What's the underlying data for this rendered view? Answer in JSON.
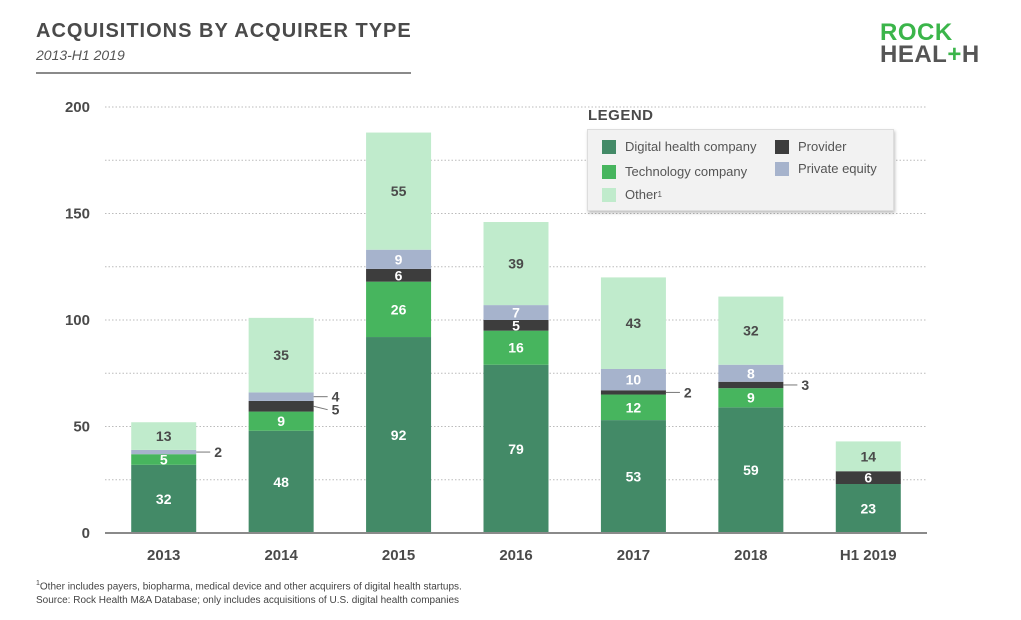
{
  "header": {
    "title": "ACQUISITIONS BY ACQUIRER TYPE",
    "subtitle": "2013-H1 2019"
  },
  "logo": {
    "line1": "ROCK",
    "line2_pre": "HEAL",
    "line2_plus": "+",
    "line2_post": "H"
  },
  "legend": {
    "title": "LEGEND",
    "items": [
      {
        "label": "Digital health company",
        "sup": "",
        "color": "#438a67"
      },
      {
        "label": "Technology company",
        "sup": "",
        "color": "#47b55e"
      },
      {
        "label": "Other",
        "sup": "1",
        "color": "#c0ebcc"
      },
      {
        "label": "Provider",
        "sup": "",
        "color": "#3d3d3d"
      },
      {
        "label": "Private equity",
        "sup": "",
        "color": "#a6b3cc"
      }
    ]
  },
  "footnote": {
    "line1_sup": "1",
    "line1": "Other includes payers, biopharma, medical device and other acquirers of digital health startups.",
    "line2": "Source: Rock Health M&A Database; only includes acquisitions of U.S. digital health companies"
  },
  "chart_data": {
    "type": "bar",
    "stacked": true,
    "title": "ACQUISITIONS BY ACQUIRER TYPE",
    "subtitle": "2013-H1 2019",
    "xlabel": "",
    "ylabel": "",
    "ylim": [
      0,
      200
    ],
    "yticks": [
      0,
      50,
      100,
      150,
      200
    ],
    "grid": true,
    "legend_position": "top-right",
    "categories": [
      "2013",
      "2014",
      "2015",
      "2016",
      "2017",
      "2018",
      "H1 2019"
    ],
    "series": [
      {
        "name": "Digital health company",
        "color": "#438a67",
        "label_color": "#ffffff",
        "values": [
          32,
          48,
          92,
          79,
          53,
          59,
          23
        ]
      },
      {
        "name": "Technology company",
        "color": "#47b55e",
        "label_color": "#ffffff",
        "values": [
          5,
          9,
          26,
          16,
          12,
          9,
          0
        ]
      },
      {
        "name": "Provider",
        "color": "#3d3d3d",
        "label_color": "#ffffff",
        "values": [
          0,
          5,
          6,
          5,
          2,
          3,
          6
        ]
      },
      {
        "name": "Private equity",
        "color": "#a6b3cc",
        "label_color": "#ffffff",
        "values": [
          2,
          4,
          9,
          7,
          10,
          8,
          0
        ]
      },
      {
        "name": "Other",
        "color": "#c0ebcc",
        "label_color": "#4a4a4a",
        "values": [
          13,
          35,
          55,
          39,
          43,
          32,
          14
        ]
      }
    ],
    "callouts": [
      {
        "category": "2013",
        "series": "Private equity",
        "value": 2
      },
      {
        "category": "2014",
        "series": "Private equity",
        "value": 4
      },
      {
        "category": "2014",
        "series": "Provider",
        "value": 5
      },
      {
        "category": "2017",
        "series": "Provider",
        "value": 2
      },
      {
        "category": "2018",
        "series": "Provider",
        "value": 3
      }
    ]
  }
}
